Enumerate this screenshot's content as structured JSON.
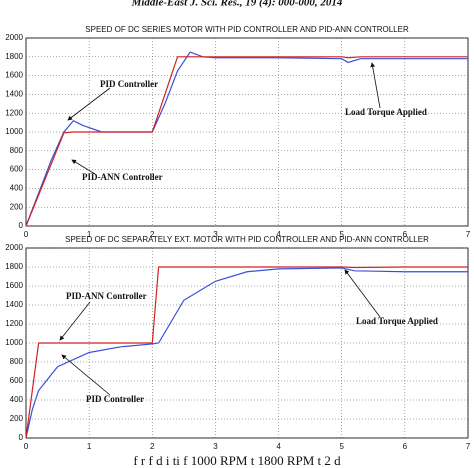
{
  "header": "Middle-East J. Sci. Res., 19 (4): 000-000, 2014",
  "footer": "f r     f      d   i ti   f  1000 RPM t  1800 RPM  t 2     d",
  "chart_data": [
    {
      "type": "line",
      "title": "SPEED OF DC SERIES MOTOR WITH PID CONTROLLER AND PID-ANN CONTROLLER",
      "x": [
        0,
        0.2,
        0.4,
        0.6,
        0.75,
        0.9,
        1.2,
        2,
        2.2,
        2.4,
        2.6,
        2.8,
        3,
        4,
        5,
        5.1,
        5.3,
        7
      ],
      "series": [
        {
          "color": "#3a4fd8",
          "values": [
            0,
            350,
            700,
            1000,
            1120,
            1070,
            1000,
            1000,
            1300,
            1650,
            1850,
            1800,
            1790,
            1790,
            1780,
            1740,
            1780,
            1780
          ]
        },
        {
          "color": "#d42020",
          "values": [
            0,
            330,
            660,
            990,
            1000,
            1000,
            1000,
            1000,
            1400,
            1800,
            1800,
            1800,
            1800,
            1800,
            1800,
            1790,
            1800,
            1800
          ]
        }
      ],
      "annotations": [
        {
          "text": "PID Controller"
        },
        {
          "text": "PID-ANN Controller"
        },
        {
          "text": "Load Torque Applied"
        }
      ],
      "xlim": [
        0,
        7
      ],
      "xticks": [
        0,
        1,
        2,
        3,
        4,
        5,
        6,
        7
      ],
      "ylim": [
        0,
        2000
      ],
      "yticks": [
        0,
        200,
        400,
        600,
        800,
        1000,
        1200,
        1400,
        1600,
        1800,
        2000
      ],
      "grid": true
    },
    {
      "type": "line",
      "title": "SPEED OF DC SEPARATELY EXT. MOTOR WITH PID CONTROLLER AND PID-ANN CONTROLLER",
      "x": [
        0,
        0.1,
        0.2,
        0.5,
        1,
        1.5,
        2,
        2.1,
        2.5,
        3,
        3.5,
        4,
        5,
        5.2,
        6,
        7
      ],
      "series": [
        {
          "color": "#3a4fd8",
          "values": [
            0,
            300,
            500,
            750,
            900,
            960,
            990,
            1000,
            1450,
            1650,
            1750,
            1780,
            1790,
            1760,
            1750,
            1750
          ]
        },
        {
          "color": "#d42020",
          "values": [
            0,
            500,
            1000,
            1000,
            1000,
            1000,
            1000,
            1800,
            1800,
            1800,
            1800,
            1800,
            1800,
            1795,
            1800,
            1800
          ]
        }
      ],
      "annotations": [
        {
          "text": "PID-ANN Controller"
        },
        {
          "text": "PID Controller"
        },
        {
          "text": "Load Torque Applied"
        }
      ],
      "xlim": [
        0,
        7
      ],
      "xticks": [
        0,
        1,
        2,
        3,
        4,
        5,
        6,
        7
      ],
      "ylim": [
        0,
        2000
      ],
      "yticks": [
        0,
        200,
        400,
        600,
        800,
        1000,
        1200,
        1400,
        1600,
        1800,
        2000
      ],
      "grid": true
    }
  ]
}
